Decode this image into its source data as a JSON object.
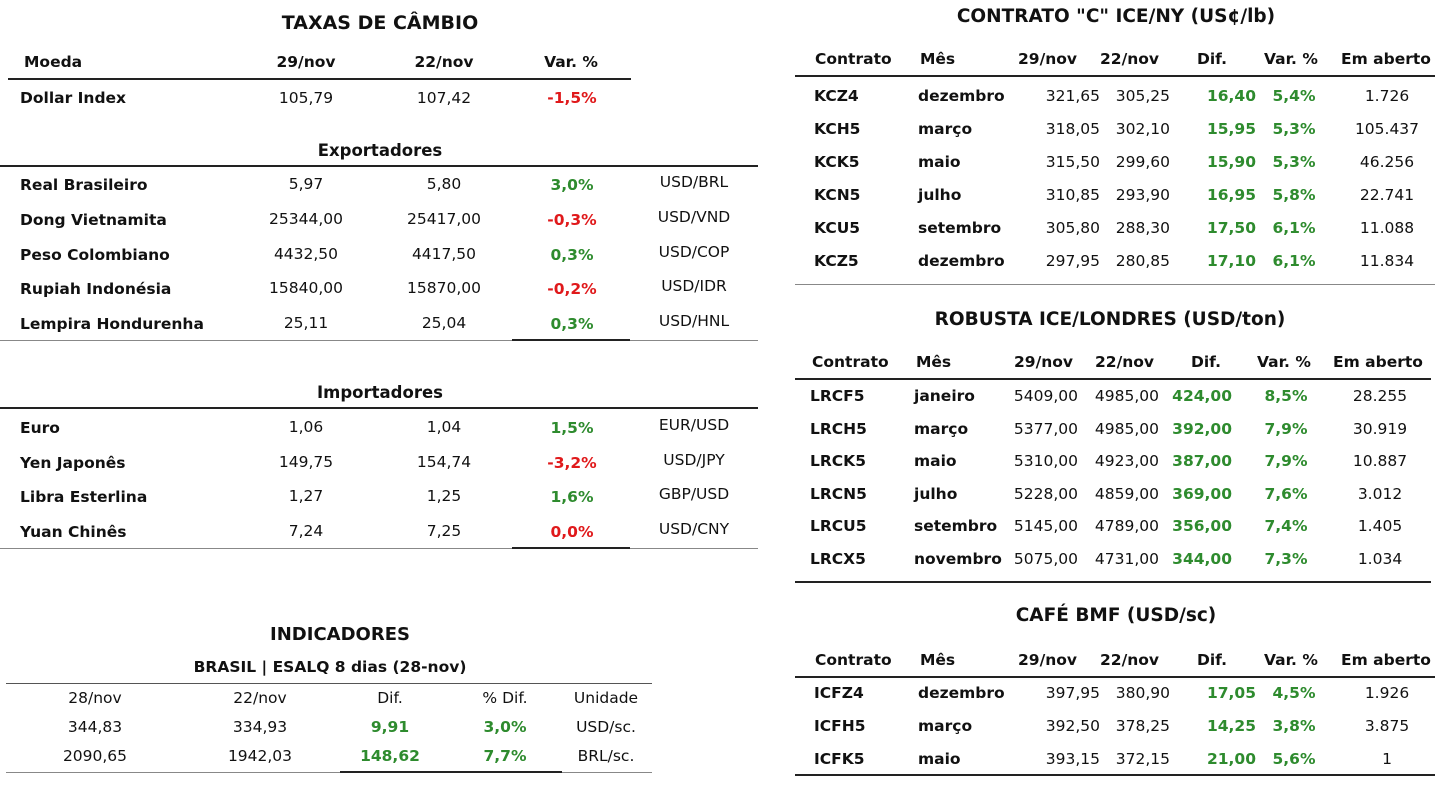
{
  "fx": {
    "title": "TAXAS DE CÂMBIO",
    "headers": {
      "moeda": "Moeda",
      "d1": "29/nov",
      "d2": "22/nov",
      "var": "Var. %"
    },
    "dollar_index": {
      "name": "Dollar Index",
      "v1": "105,79",
      "v2": "107,42",
      "var": "-1,5%"
    },
    "exportadores_title": "Exportadores",
    "exportadores": [
      {
        "name": "Real Brasileiro",
        "v1": "5,97",
        "v2": "5,80",
        "var": "3,0%",
        "pair": "USD/BRL"
      },
      {
        "name": "Dong Vietnamita",
        "v1": "25344,00",
        "v2": "25417,00",
        "var": "-0,3%",
        "pair": "USD/VND"
      },
      {
        "name": "Peso Colombiano",
        "v1": "4432,50",
        "v2": "4417,50",
        "var": "0,3%",
        "pair": "USD/COP"
      },
      {
        "name": "Rupiah Indonésia",
        "v1": "15840,00",
        "v2": "15870,00",
        "var": "-0,2%",
        "pair": "USD/IDR"
      },
      {
        "name": "Lempira Hondurenha",
        "v1": "25,11",
        "v2": "25,04",
        "var": "0,3%",
        "pair": "USD/HNL"
      }
    ],
    "importadores_title": "Importadores",
    "importadores": [
      {
        "name": "Euro",
        "v1": "1,06",
        "v2": "1,04",
        "var": "1,5%",
        "pair": "EUR/USD"
      },
      {
        "name": "Yen Japonês",
        "v1": "149,75",
        "v2": "154,74",
        "var": "-3,2%",
        "pair": "USD/JPY"
      },
      {
        "name": "Libra Esterlina",
        "v1": "1,27",
        "v2": "1,25",
        "var": "1,6%",
        "pair": "GBP/USD"
      },
      {
        "name": "Yuan Chinês",
        "v1": "7,24",
        "v2": "7,25",
        "var": "0,0%",
        "pair": "USD/CNY"
      }
    ]
  },
  "indicadores": {
    "title": "INDICADORES",
    "subtitle": "BRASIL | ESALQ 8 dias (28-nov)",
    "headers": [
      "28/nov",
      "22/nov",
      "Dif.",
      "% Dif.",
      "Unidade"
    ],
    "rows": [
      {
        "v1": "344,83",
        "v2": "334,93",
        "dif": "9,91",
        "pct": "3,0%",
        "unit": "USD/sc."
      },
      {
        "v1": "2090,65",
        "v2": "1942,03",
        "dif": "148,62",
        "pct": "7,7%",
        "unit": "BRL/sc."
      }
    ]
  },
  "contrato_c": {
    "title": "CONTRATO \"C\" ICE/NY (US¢/lb)",
    "headers": [
      "Contrato",
      "Mês",
      "29/nov",
      "22/nov",
      "Dif.",
      "Var. %",
      "Em aberto"
    ],
    "rows": [
      {
        "code": "KCZ4",
        "month": "dezembro",
        "v1": "321,65",
        "v2": "305,25",
        "dif": "16,40",
        "var": "5,4%",
        "open": "1.726"
      },
      {
        "code": "KCH5",
        "month": "março",
        "v1": "318,05",
        "v2": "302,10",
        "dif": "15,95",
        "var": "5,3%",
        "open": "105.437"
      },
      {
        "code": "KCK5",
        "month": "maio",
        "v1": "315,50",
        "v2": "299,60",
        "dif": "15,90",
        "var": "5,3%",
        "open": "46.256"
      },
      {
        "code": "KCN5",
        "month": "julho",
        "v1": "310,85",
        "v2": "293,90",
        "dif": "16,95",
        "var": "5,8%",
        "open": "22.741"
      },
      {
        "code": "KCU5",
        "month": "setembro",
        "v1": "305,80",
        "v2": "288,30",
        "dif": "17,50",
        "var": "6,1%",
        "open": "11.088"
      },
      {
        "code": "KCZ5",
        "month": "dezembro",
        "v1": "297,95",
        "v2": "280,85",
        "dif": "17,10",
        "var": "6,1%",
        "open": "11.834"
      }
    ]
  },
  "robusta": {
    "title": "ROBUSTA ICE/LONDRES (USD/ton)",
    "headers": [
      "Contrato",
      "Mês",
      "29/nov",
      "22/nov",
      "Dif.",
      "Var. %",
      "Em aberto"
    ],
    "rows": [
      {
        "code": "LRCF5",
        "month": "janeiro",
        "v1": "5409,00",
        "v2": "4985,00",
        "dif": "424,00",
        "var": "8,5%",
        "open": "28.255"
      },
      {
        "code": "LRCH5",
        "month": "março",
        "v1": "5377,00",
        "v2": "4985,00",
        "dif": "392,00",
        "var": "7,9%",
        "open": "30.919"
      },
      {
        "code": "LRCK5",
        "month": "maio",
        "v1": "5310,00",
        "v2": "4923,00",
        "dif": "387,00",
        "var": "7,9%",
        "open": "10.887"
      },
      {
        "code": "LRCN5",
        "month": "julho",
        "v1": "5228,00",
        "v2": "4859,00",
        "dif": "369,00",
        "var": "7,6%",
        "open": "3.012"
      },
      {
        "code": "LRCU5",
        "month": "setembro",
        "v1": "5145,00",
        "v2": "4789,00",
        "dif": "356,00",
        "var": "7,4%",
        "open": "1.405"
      },
      {
        "code": "LRCX5",
        "month": "novembro",
        "v1": "5075,00",
        "v2": "4731,00",
        "dif": "344,00",
        "var": "7,3%",
        "open": "1.034"
      }
    ]
  },
  "cafe_bmf": {
    "title": "CAFÉ BMF (USD/sc)",
    "headers": [
      "Contrato",
      "Mês",
      "29/nov",
      "22/nov",
      "Dif.",
      "Var. %",
      "Em aberto"
    ],
    "rows": [
      {
        "code": "ICFZ4",
        "month": "dezembro",
        "v1": "397,95",
        "v2": "380,90",
        "dif": "17,05",
        "var": "4,5%",
        "open": "1.926"
      },
      {
        "code": "ICFH5",
        "month": "março",
        "v1": "392,50",
        "v2": "378,25",
        "dif": "14,25",
        "var": "3,8%",
        "open": "3.875"
      },
      {
        "code": "ICFK5",
        "month": "maio",
        "v1": "393,15",
        "v2": "372,15",
        "dif": "21,00",
        "var": "5,6%",
        "open": "1"
      }
    ]
  }
}
